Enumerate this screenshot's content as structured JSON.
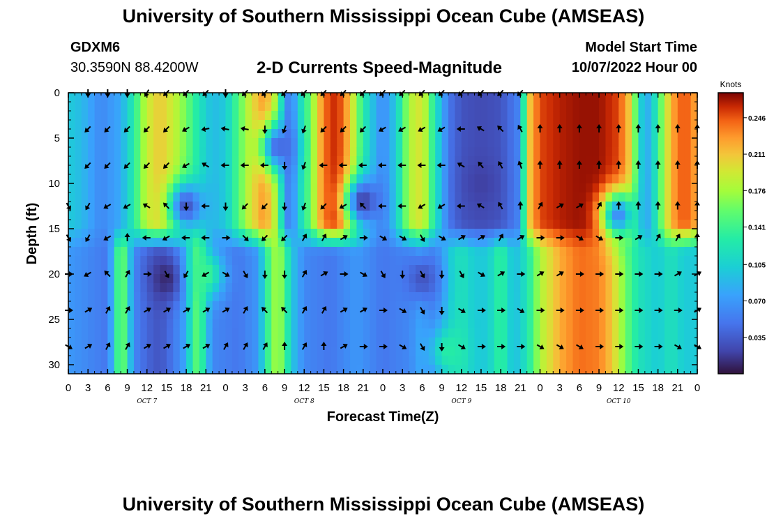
{
  "header": {
    "title": "University of Southern Mississippi Ocean Cube (AMSEAS)",
    "station_id": "GDXM6",
    "coordinates": "30.3590N  88.4200W",
    "model_start_label": "Model Start Time",
    "model_start_value": "10/07/2022 Hour 00"
  },
  "footer": {
    "title": "University of Southern Mississippi Ocean Cube (AMSEAS)"
  },
  "chart_data": {
    "type": "heatmap",
    "title": "2-D Currents Speed-Magnitude",
    "xlabel": "Forecast Time(Z)",
    "ylabel": "Depth (ft)",
    "x_ticks": [
      "0",
      "3",
      "6",
      "9",
      "12",
      "15",
      "18",
      "21",
      "0",
      "3",
      "6",
      "9",
      "12",
      "15",
      "18",
      "21",
      "0",
      "3",
      "6",
      "9",
      "12",
      "15",
      "18",
      "21",
      "0",
      "3",
      "6",
      "9",
      "12",
      "15",
      "18",
      "21",
      "0"
    ],
    "x_range_hours": [
      0,
      96
    ],
    "day_labels": [
      {
        "label": "OCT 7",
        "hour": 12
      },
      {
        "label": "OCT 8",
        "hour": 36
      },
      {
        "label": "OCT 9",
        "hour": 60
      },
      {
        "label": "OCT 10",
        "hour": 84
      }
    ],
    "y_ticks": [
      "0",
      "5",
      "10",
      "15",
      "20",
      "25",
      "30"
    ],
    "ylim": [
      0,
      31
    ],
    "depth_levels_ft": [
      0,
      4,
      8,
      12.5,
      16,
      20,
      24,
      28
    ],
    "colorbar": {
      "unit": "Knots",
      "ticks": [
        "0.246",
        "0.211",
        "0.176",
        "0.141",
        "0.105",
        "0.070",
        "0.035"
      ],
      "range": [
        0,
        0.27
      ]
    },
    "bands": [
      {
        "region": "upper",
        "depth_range": [
          0,
          16
        ],
        "speed_by_hour": [
          [
            0,
            0.1
          ],
          [
            2,
            0.09
          ],
          [
            5,
            0.06
          ],
          [
            8,
            0.08
          ],
          [
            10,
            0.13
          ],
          [
            12,
            0.19
          ],
          [
            14,
            0.21
          ],
          [
            16,
            0.19
          ],
          [
            18,
            0.16
          ],
          [
            20,
            0.12
          ],
          [
            22,
            0.09
          ],
          [
            24,
            0.1
          ],
          [
            26,
            0.15
          ],
          [
            28,
            0.2
          ],
          [
            30,
            0.23
          ],
          [
            32,
            0.17
          ],
          [
            33,
            0.07
          ],
          [
            34,
            0.05
          ],
          [
            35,
            0.1
          ],
          [
            37,
            0.16
          ],
          [
            39,
            0.24
          ],
          [
            41,
            0.26
          ],
          [
            43,
            0.21
          ],
          [
            45,
            0.13
          ],
          [
            47,
            0.08
          ],
          [
            48,
            0.06
          ],
          [
            50,
            0.1
          ],
          [
            52,
            0.18
          ],
          [
            54,
            0.2
          ],
          [
            56,
            0.12
          ],
          [
            58,
            0.05
          ],
          [
            60,
            0.03
          ],
          [
            63,
            0.025
          ],
          [
            66,
            0.03
          ],
          [
            69,
            0.06
          ],
          [
            70,
            0.2
          ],
          [
            72,
            0.25
          ],
          [
            75,
            0.26
          ],
          [
            78,
            0.265
          ],
          [
            81,
            0.265
          ],
          [
            84,
            0.25
          ],
          [
            86,
            0.2
          ],
          [
            87,
            0.12
          ],
          [
            88,
            0.08
          ],
          [
            89,
            0.09
          ],
          [
            90,
            0.14
          ],
          [
            92,
            0.22
          ],
          [
            94,
            0.25
          ],
          [
            96,
            0.22
          ]
        ]
      },
      {
        "region": "lower",
        "depth_range": [
          16,
          31
        ],
        "speed_by_hour": [
          [
            0,
            0.07
          ],
          [
            3,
            0.06
          ],
          [
            6,
            0.05
          ],
          [
            7,
            0.1
          ],
          [
            8,
            0.18
          ],
          [
            9,
            0.12
          ],
          [
            10,
            0.06
          ],
          [
            12,
            0.04
          ],
          [
            14,
            0.03
          ],
          [
            16,
            0.05
          ],
          [
            18,
            0.08
          ],
          [
            19,
            0.14
          ],
          [
            20,
            0.16
          ],
          [
            21,
            0.1
          ],
          [
            22,
            0.06
          ],
          [
            26,
            0.05
          ],
          [
            29,
            0.07
          ],
          [
            30,
            0.12
          ],
          [
            31,
            0.16
          ],
          [
            32,
            0.18
          ],
          [
            33,
            0.15
          ],
          [
            34,
            0.1
          ],
          [
            36,
            0.06
          ],
          [
            40,
            0.05
          ],
          [
            44,
            0.07
          ],
          [
            48,
            0.05
          ],
          [
            52,
            0.06
          ],
          [
            54,
            0.08
          ],
          [
            55,
            0.06
          ],
          [
            57,
            0.07
          ],
          [
            58,
            0.1
          ],
          [
            60,
            0.12
          ],
          [
            62,
            0.1
          ],
          [
            64,
            0.1
          ],
          [
            66,
            0.14
          ],
          [
            68,
            0.09
          ],
          [
            70,
            0.12
          ],
          [
            72,
            0.18
          ],
          [
            75,
            0.22
          ],
          [
            78,
            0.24
          ],
          [
            81,
            0.235
          ],
          [
            83,
            0.21
          ],
          [
            85,
            0.16
          ],
          [
            87,
            0.12
          ],
          [
            90,
            0.1
          ],
          [
            92,
            0.12
          ],
          [
            94,
            0.1
          ],
          [
            96,
            0.1
          ]
        ]
      }
    ],
    "features": [
      {
        "name": "speed-minimum",
        "hour": 15,
        "depth_ft": 20.5,
        "speed": 0.01
      },
      {
        "name": "speed-minimum",
        "hour": 18,
        "depth_ft": 12.5,
        "speed": 0.03
      },
      {
        "name": "speed-minimum",
        "hour": 32,
        "depth_ft": 6,
        "speed": 0.04
      },
      {
        "name": "speed-minimum",
        "hour": 45,
        "depth_ft": 12,
        "speed": 0.02
      },
      {
        "name": "speed-minimum",
        "hour": 54,
        "depth_ft": 20.5,
        "speed": 0.03
      },
      {
        "name": "speed-minimum",
        "hour": 63,
        "depth_ft": 10,
        "speed": 0.02
      },
      {
        "name": "speed-minimum",
        "hour": 84,
        "depth_ft": 13.5,
        "speed": 0.06
      },
      {
        "name": "speed-maximum",
        "hour": 58,
        "depth_ft": 28.5,
        "speed": 0.13
      },
      {
        "name": "speed-maximum",
        "hour": 21,
        "depth_ft": 20,
        "speed": 0.14
      }
    ],
    "vectors": [
      {
        "depth_ft": 0,
        "hours": [
          3,
          6,
          9,
          12,
          15,
          18,
          21,
          24,
          27,
          30,
          33,
          36,
          39,
          42,
          45,
          48,
          51,
          54,
          57,
          60,
          63,
          66,
          69
        ],
        "angles_deg": [
          180,
          180,
          180,
          210,
          225,
          225,
          225,
          180,
          225,
          225,
          225,
          225,
          225,
          225,
          225,
          225,
          225,
          225,
          225,
          225,
          225,
          225,
          225
        ]
      },
      {
        "depth_ft": 4,
        "hours": [
          3,
          6,
          9,
          12,
          15,
          18,
          21,
          24,
          27,
          30,
          33,
          36,
          39,
          42,
          45,
          48,
          51,
          54,
          57,
          60,
          63,
          66,
          69,
          72,
          75,
          78,
          81,
          84,
          87,
          90,
          93,
          96
        ],
        "angles_deg": [
          225,
          225,
          225,
          225,
          225,
          240,
          260,
          280,
          280,
          180,
          200,
          200,
          225,
          225,
          225,
          240,
          240,
          240,
          240,
          270,
          300,
          315,
          330,
          0,
          0,
          0,
          0,
          0,
          0,
          0,
          0,
          0
        ]
      },
      {
        "depth_ft": 8,
        "hours": [
          3,
          6,
          9,
          12,
          15,
          18,
          21,
          24,
          27,
          30,
          33,
          36,
          39,
          42,
          45,
          48,
          51,
          54,
          57,
          60,
          63,
          66,
          69,
          72,
          75,
          78,
          81,
          84,
          87,
          90,
          93,
          96
        ],
        "angles_deg": [
          225,
          225,
          225,
          225,
          225,
          240,
          300,
          270,
          270,
          270,
          180,
          200,
          270,
          270,
          270,
          270,
          270,
          270,
          270,
          300,
          320,
          330,
          340,
          0,
          0,
          0,
          0,
          0,
          0,
          0,
          0,
          0
        ]
      },
      {
        "depth_ft": 12.5,
        "hours": [
          0,
          3,
          6,
          9,
          12,
          15,
          18,
          21,
          24,
          27,
          30,
          33,
          36,
          39,
          42,
          45,
          48,
          51,
          54,
          57,
          60,
          63,
          66,
          69,
          72,
          75,
          78,
          81,
          84,
          87,
          90,
          93,
          96
        ],
        "angles_deg": [
          150,
          210,
          240,
          240,
          300,
          315,
          180,
          270,
          180,
          225,
          225,
          180,
          200,
          225,
          240,
          315,
          270,
          270,
          240,
          240,
          270,
          300,
          330,
          0,
          30,
          60,
          60,
          30,
          0,
          0,
          0,
          0,
          0
        ]
      },
      {
        "depth_ft": 16,
        "hours": [
          0,
          3,
          6,
          9,
          12,
          15,
          18,
          21,
          24,
          27,
          30,
          33,
          36,
          39,
          42,
          45,
          48,
          51,
          54,
          57,
          60,
          63,
          66,
          69,
          72,
          75,
          78,
          81,
          84,
          87,
          90,
          93,
          96
        ],
        "angles_deg": [
          150,
          210,
          240,
          0,
          270,
          240,
          270,
          270,
          90,
          135,
          225,
          225,
          30,
          30,
          60,
          90,
          120,
          120,
          150,
          120,
          60,
          60,
          30,
          60,
          90,
          90,
          120,
          120,
          90,
          60,
          30,
          30,
          0
        ]
      },
      {
        "depth_ft": 20,
        "hours": [
          0,
          3,
          6,
          9,
          12,
          15,
          18,
          21,
          24,
          27,
          30,
          33,
          36,
          39,
          42,
          45,
          48,
          51,
          54,
          57,
          60,
          63,
          66,
          69,
          72,
          75,
          78,
          81,
          84,
          87,
          90,
          93,
          96
        ],
        "angles_deg": [
          90,
          240,
          315,
          30,
          90,
          150,
          210,
          240,
          120,
          150,
          180,
          180,
          30,
          60,
          90,
          120,
          150,
          180,
          150,
          180,
          150,
          120,
          60,
          90,
          60,
          60,
          90,
          90,
          90,
          90,
          90,
          60,
          60
        ]
      },
      {
        "depth_ft": 24,
        "hours": [
          0,
          3,
          6,
          9,
          12,
          15,
          18,
          21,
          24,
          27,
          30,
          33,
          36,
          39,
          42,
          45,
          48,
          51,
          54,
          57,
          60,
          63,
          66,
          69,
          72,
          75,
          78,
          81,
          84,
          87,
          90,
          93,
          96
        ],
        "angles_deg": [
          90,
          60,
          30,
          30,
          60,
          60,
          60,
          60,
          60,
          30,
          315,
          315,
          30,
          30,
          60,
          60,
          90,
          120,
          150,
          180,
          120,
          90,
          90,
          120,
          90,
          90,
          90,
          90,
          90,
          90,
          90,
          90,
          60
        ]
      },
      {
        "depth_ft": 28,
        "hours": [
          0,
          3,
          6,
          9,
          12,
          15,
          18,
          21,
          24,
          27,
          30,
          33,
          36,
          39,
          42,
          45,
          48,
          51,
          54,
          57,
          60,
          63,
          66,
          69,
          72,
          75,
          78,
          81,
          84,
          87,
          90,
          93,
          96
        ],
        "angles_deg": [
          120,
          60,
          30,
          30,
          60,
          60,
          60,
          60,
          30,
          30,
          30,
          0,
          30,
          0,
          60,
          90,
          90,
          120,
          150,
          180,
          120,
          90,
          90,
          90,
          120,
          120,
          120,
          90,
          90,
          90,
          90,
          120,
          120
        ]
      }
    ]
  }
}
